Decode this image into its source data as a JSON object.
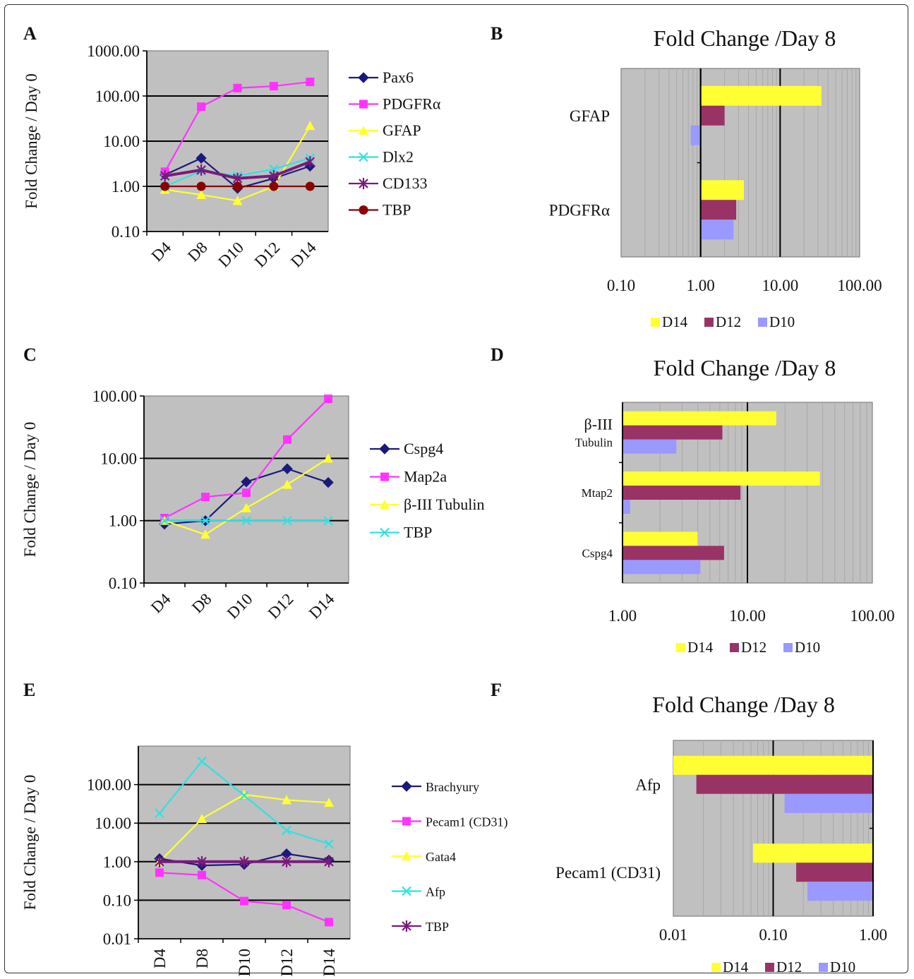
{
  "panels": [
    {
      "letter": "A",
      "kind": "line",
      "ylabel": "Fold Change / Day 0",
      "categories": [
        "D4",
        "D8",
        "D10",
        "D12",
        "D14"
      ],
      "yticks": [
        "1000.00",
        "100.00",
        "10.00",
        "1.00",
        "0.10"
      ],
      "series": [
        {
          "name": "Pax6",
          "color": "#1a1a7a",
          "marker": "diamond",
          "values": [
            1.8,
            4.2,
            0.9,
            1.5,
            2.8
          ]
        },
        {
          "name": "PDGFRα",
          "color": "#ff33ff",
          "marker": "square",
          "values": [
            2.1,
            58,
            150,
            165,
            205
          ]
        },
        {
          "name": "GFAP",
          "color": "#ffff33",
          "marker": "triangle",
          "values": [
            0.85,
            0.65,
            0.48,
            1.0,
            22
          ]
        },
        {
          "name": "Dlx2",
          "color": "#33e0e0",
          "marker": "x",
          "values": [
            1.0,
            2.2,
            1.7,
            2.4,
            4.2
          ]
        },
        {
          "name": "CD133",
          "color": "#7a1a7a",
          "marker": "star",
          "values": [
            1.7,
            2.3,
            1.5,
            1.7,
            3.5
          ]
        },
        {
          "name": "TBP",
          "color": "#8b0000",
          "marker": "circle",
          "values": [
            1.0,
            1.0,
            1.0,
            1.0,
            1.0
          ]
        }
      ]
    },
    {
      "letter": "B",
      "kind": "hbar",
      "title": "Fold Change /Day 8",
      "categories": [
        "GFAP",
        "PDGFRα"
      ],
      "xticks": [
        "0.10",
        "1.00",
        "10.00",
        "100.00"
      ],
      "series": [
        {
          "name": "D14",
          "color": "#ffff33",
          "values": [
            33,
            3.5
          ]
        },
        {
          "name": "D12",
          "color": "#993366",
          "values": [
            2.0,
            2.8
          ]
        },
        {
          "name": "D10",
          "color": "#9999ff",
          "values": [
            0.75,
            2.6
          ]
        }
      ]
    },
    {
      "letter": "C",
      "kind": "line",
      "ylabel": "Fold Change / Day 0",
      "categories": [
        "D4",
        "D8",
        "D10",
        "D12",
        "D14"
      ],
      "yticks": [
        "100.00",
        "10.00",
        "1.00",
        "0.10"
      ],
      "series": [
        {
          "name": "Cspg4",
          "color": "#1a1a7a",
          "marker": "diamond",
          "values": [
            0.88,
            1.0,
            4.2,
            6.8,
            4.1
          ]
        },
        {
          "name": "Map2a",
          "color": "#ff33ff",
          "marker": "square",
          "values": [
            1.1,
            2.4,
            2.8,
            20,
            90
          ]
        },
        {
          "name": "β-III Tubulin",
          "color": "#ffff33",
          "marker": "triangle",
          "values": [
            1.0,
            0.6,
            1.6,
            3.8,
            10
          ]
        },
        {
          "name": "TBP",
          "color": "#33e0e0",
          "marker": "x",
          "values": [
            1.0,
            1.0,
            1.0,
            1.0,
            1.0
          ]
        }
      ]
    },
    {
      "letter": "D",
      "kind": "hbar",
      "title": "Fold Change /Day 8",
      "categories": [
        {
          "main": "β-III",
          "sub": "Tubulin"
        },
        {
          "main": "Mtap2"
        },
        {
          "main": "Cspg4"
        }
      ],
      "xticks": [
        "1.00",
        "10.00",
        "100.00"
      ],
      "series": [
        {
          "name": "D14",
          "color": "#ffff33",
          "values": [
            17,
            38,
            4.0
          ]
        },
        {
          "name": "D12",
          "color": "#993366",
          "values": [
            6.3,
            8.8,
            6.5
          ]
        },
        {
          "name": "D10",
          "color": "#9999ff",
          "values": [
            2.7,
            1.15,
            4.2
          ]
        }
      ]
    },
    {
      "letter": "E",
      "kind": "line",
      "ylabel": "Fold Change / Day 0",
      "categories": [
        "D4",
        "D8",
        "D10",
        "D12",
        "D14"
      ],
      "yticks": [
        "100.00",
        "10.00",
        "1.00",
        "0.10",
        "0.01"
      ],
      "series": [
        {
          "name": "Brachyury",
          "color": "#1a1a7a",
          "marker": "diamond",
          "values": [
            1.2,
            0.8,
            0.85,
            1.6,
            1.1
          ]
        },
        {
          "name": "Pecam1 (CD31)",
          "color": "#ff33ff",
          "marker": "square",
          "values": [
            0.52,
            0.45,
            0.095,
            0.075,
            0.027
          ]
        },
        {
          "name": "Gata4",
          "color": "#ffff33",
          "marker": "triangle",
          "values": [
            1.0,
            13,
            55,
            40,
            34
          ]
        },
        {
          "name": "Afp",
          "color": "#33e0e0",
          "marker": "x",
          "values": [
            18,
            400,
            52,
            6.5,
            2.9
          ]
        },
        {
          "name": "TBP",
          "color": "#7a1a7a",
          "marker": "star",
          "values": [
            1.0,
            1.0,
            1.0,
            1.0,
            1.0
          ]
        }
      ]
    },
    {
      "letter": "F",
      "kind": "hbar",
      "title": "Fold Change /Day 8",
      "categories": [
        "Afp",
        "Pecam1 (CD31)"
      ],
      "xticks": [
        "0.01",
        "0.10",
        "1.00"
      ],
      "series": [
        {
          "name": "D14",
          "color": "#ffff33",
          "values": [
            0.01,
            0.063
          ]
        },
        {
          "name": "D12",
          "color": "#993366",
          "values": [
            0.017,
            0.17
          ]
        },
        {
          "name": "D10",
          "color": "#9999ff",
          "values": [
            0.13,
            0.22
          ]
        }
      ]
    }
  ],
  "chart_data": [
    {
      "type": "line",
      "panel": "A",
      "ylabel": "Fold Change / Day 0",
      "yscale": "log",
      "ylim": [
        0.1,
        1000
      ],
      "categories": [
        "D4",
        "D8",
        "D10",
        "D12",
        "D14"
      ],
      "series": [
        {
          "name": "Pax6",
          "values": [
            1.8,
            4.2,
            0.9,
            1.5,
            2.8
          ]
        },
        {
          "name": "PDGFRα",
          "values": [
            2.1,
            58,
            150,
            165,
            205
          ]
        },
        {
          "name": "GFAP",
          "values": [
            0.85,
            0.65,
            0.48,
            1.0,
            22
          ]
        },
        {
          "name": "Dlx2",
          "values": [
            1.0,
            2.2,
            1.7,
            2.4,
            4.2
          ]
        },
        {
          "name": "CD133",
          "values": [
            1.7,
            2.3,
            1.5,
            1.7,
            3.5
          ]
        },
        {
          "name": "TBP",
          "values": [
            1.0,
            1.0,
            1.0,
            1.0,
            1.0
          ]
        }
      ]
    },
    {
      "type": "bar",
      "orientation": "horizontal",
      "panel": "B",
      "title": "Fold Change /Day 8",
      "xscale": "log",
      "xlim": [
        0.1,
        100
      ],
      "categories": [
        "GFAP",
        "PDGFRα"
      ],
      "series": [
        {
          "name": "D14",
          "values": [
            33,
            3.5
          ]
        },
        {
          "name": "D12",
          "values": [
            2.0,
            2.8
          ]
        },
        {
          "name": "D10",
          "values": [
            0.75,
            2.6
          ]
        }
      ]
    },
    {
      "type": "line",
      "panel": "C",
      "ylabel": "Fold Change / Day 0",
      "yscale": "log",
      "ylim": [
        0.1,
        100
      ],
      "categories": [
        "D4",
        "D8",
        "D10",
        "D12",
        "D14"
      ],
      "series": [
        {
          "name": "Cspg4",
          "values": [
            0.88,
            1.0,
            4.2,
            6.8,
            4.1
          ]
        },
        {
          "name": "Map2a",
          "values": [
            1.1,
            2.4,
            2.8,
            20,
            90
          ]
        },
        {
          "name": "β-III Tubulin",
          "values": [
            1.0,
            0.6,
            1.6,
            3.8,
            10
          ]
        },
        {
          "name": "TBP",
          "values": [
            1.0,
            1.0,
            1.0,
            1.0,
            1.0
          ]
        }
      ]
    },
    {
      "type": "bar",
      "orientation": "horizontal",
      "panel": "D",
      "title": "Fold Change /Day 8",
      "xscale": "log",
      "xlim": [
        1,
        100
      ],
      "categories": [
        "β-III Tubulin",
        "Mtap2",
        "Cspg4"
      ],
      "series": [
        {
          "name": "D14",
          "values": [
            17,
            38,
            4.0
          ]
        },
        {
          "name": "D12",
          "values": [
            6.3,
            8.8,
            6.5
          ]
        },
        {
          "name": "D10",
          "values": [
            2.7,
            1.15,
            4.2
          ]
        }
      ]
    },
    {
      "type": "line",
      "panel": "E",
      "ylabel": "Fold Change / Day 0",
      "yscale": "log",
      "ylim": [
        0.01,
        1000
      ],
      "categories": [
        "D4",
        "D8",
        "D10",
        "D12",
        "D14"
      ],
      "series": [
        {
          "name": "Brachyury",
          "values": [
            1.2,
            0.8,
            0.85,
            1.6,
            1.1
          ]
        },
        {
          "name": "Pecam1 (CD31)",
          "values": [
            0.52,
            0.45,
            0.095,
            0.075,
            0.027
          ]
        },
        {
          "name": "Gata4",
          "values": [
            1.0,
            13,
            55,
            40,
            34
          ]
        },
        {
          "name": "Afp",
          "values": [
            18,
            400,
            52,
            6.5,
            2.9
          ]
        },
        {
          "name": "TBP",
          "values": [
            1.0,
            1.0,
            1.0,
            1.0,
            1.0
          ]
        }
      ]
    },
    {
      "type": "bar",
      "orientation": "horizontal",
      "panel": "F",
      "title": "Fold Change /Day 8",
      "xscale": "log",
      "xlim": [
        0.01,
        1
      ],
      "categories": [
        "Afp",
        "Pecam1 (CD31)"
      ],
      "series": [
        {
          "name": "D14",
          "values": [
            0.01,
            0.063
          ]
        },
        {
          "name": "D12",
          "values": [
            0.017,
            0.17
          ]
        },
        {
          "name": "D10",
          "values": [
            0.13,
            0.22
          ]
        }
      ]
    }
  ]
}
